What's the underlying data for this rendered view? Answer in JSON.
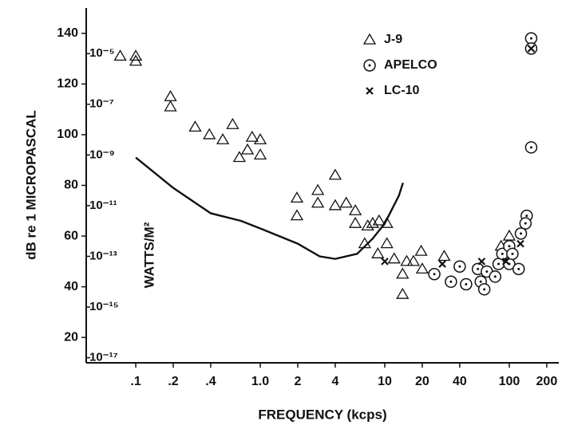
{
  "chart_data": {
    "type": "scatter",
    "xlabel": "FREQUENCY (kcps)",
    "ylabel": "dB re 1 MICROPASCAL",
    "y2label": "WATTS/M²",
    "xscale": "log",
    "y2scale": "log",
    "xlim": [
      0.04,
      250
    ],
    "ylim": [
      10,
      150
    ],
    "y2lim": [
      6.3e-18,
      0.00063
    ],
    "xticks": [
      {
        "value": 0.1,
        "label": ".1"
      },
      {
        "value": 0.2,
        "label": ".2"
      },
      {
        "value": 0.4,
        "label": ".4"
      },
      {
        "value": 1,
        "label": "1.0"
      },
      2,
      4,
      10,
      20,
      40,
      100,
      200
    ],
    "yticks": [
      20,
      40,
      60,
      80,
      100,
      120,
      140
    ],
    "y2ticks": [
      {
        "value": 1e-05,
        "label": "10⁻⁵"
      },
      {
        "value": 1e-07,
        "label": "10⁻⁷"
      },
      {
        "value": 1e-09,
        "label": "10⁻⁹"
      },
      {
        "value": 1e-11,
        "label": "10⁻¹¹"
      },
      {
        "value": 1e-13,
        "label": "10⁻¹³"
      },
      {
        "value": 1e-15,
        "label": "10⁻¹⁵"
      },
      {
        "value": 1e-17,
        "label": "10⁻¹⁷"
      }
    ],
    "legend": "upper right",
    "color": "#111111",
    "series": [
      {
        "name": "J-9",
        "marker": "triangle",
        "x": [
          0.075,
          0.1,
          0.1,
          0.19,
          0.19,
          0.3,
          0.39,
          0.5,
          0.6,
          0.68,
          0.79,
          0.86,
          1,
          1,
          1.97,
          1.97,
          2.9,
          2.9,
          4,
          4,
          4.9,
          5.8,
          5.8,
          6.9,
          7.3,
          8,
          9,
          10.4,
          10.4,
          8.8,
          11.9,
          15,
          13.9,
          13.9,
          19.6,
          20,
          17,
          30,
          100,
          86
        ],
        "y": [
          131,
          131,
          129,
          115,
          111,
          103,
          100,
          98,
          104,
          91,
          94,
          99,
          98,
          92,
          75,
          68,
          78,
          73,
          84,
          72,
          73,
          70,
          65,
          57,
          64,
          65,
          66,
          65,
          57,
          53,
          51,
          50,
          45,
          37,
          54,
          47,
          50,
          52,
          60,
          56
        ]
      },
      {
        "name": "APELCO",
        "marker": "circle-dot",
        "x": [
          150,
          150,
          150,
          138,
          135,
          25,
          40,
          34,
          45,
          56,
          59,
          66,
          63,
          77,
          82,
          88,
          100,
          100,
          106,
          119,
          124
        ],
        "y": [
          138,
          134,
          95,
          68,
          65,
          45,
          48,
          42,
          41,
          47,
          42,
          46,
          39,
          44,
          49,
          53,
          56,
          49,
          53,
          47,
          61
        ]
      },
      {
        "name": "LC-10",
        "marker": "x",
        "x": [
          10,
          29,
          60,
          94,
          123,
          150
        ],
        "y": [
          50,
          49,
          50,
          50,
          57,
          134
        ]
      },
      {
        "type": "line",
        "x": [
          0.1,
          0.2,
          0.4,
          0.7,
          1,
          2,
          3,
          4,
          6,
          8,
          10,
          13,
          14
        ],
        "y": [
          91,
          79,
          69,
          66,
          63,
          57,
          52,
          51,
          53,
          59,
          65,
          76,
          81
        ]
      }
    ]
  }
}
